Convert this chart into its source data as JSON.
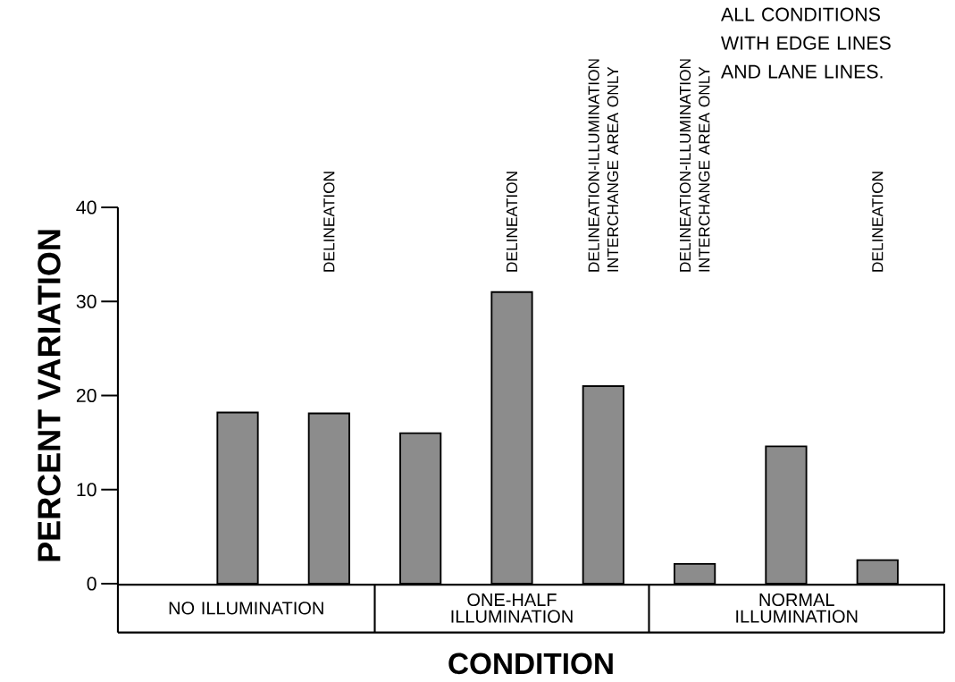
{
  "chart_data": {
    "type": "bar",
    "xlabel": "CONDITION",
    "ylabel": "PERCENT VARIATION",
    "categories": [
      null,
      "DELINEATION",
      null,
      "DELINEATION",
      "DELINEATION-ILLUMINATION INTERCHANGE AREA ONLY",
      "DELINEATION-ILLUMINATION INTERCHANGE AREA ONLY",
      null,
      "DELINEATION"
    ],
    "values": [
      18.2,
      18.1,
      16.0,
      31.0,
      21.0,
      2.1,
      14.6,
      2.5
    ],
    "color": "#8c8c8c",
    "ylim": [
      0,
      40
    ],
    "yticks": [
      0,
      10,
      20,
      30,
      40
    ],
    "annotations": [
      "NO ILLUMINATION",
      "ONE-HALF ILLUMINATION",
      "NORMAL ILLUMINATION",
      "ALL CONDITIONS WITH EDGE LINES AND LANE LINES."
    ]
  }
}
